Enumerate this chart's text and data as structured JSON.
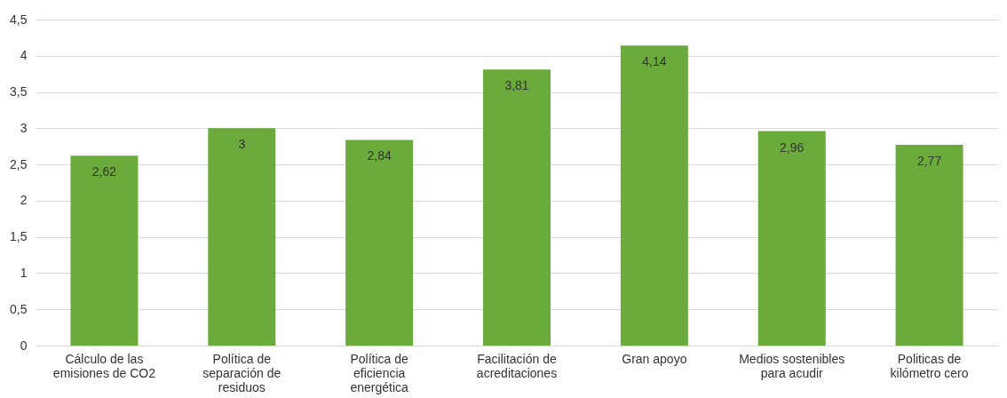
{
  "chart_data": {
    "type": "bar",
    "categories": [
      "Cálculo de las emisiones de CO2",
      "Política de separación de residuos",
      "Política de eficiencia energética",
      "Facilitación de acreditaciones",
      "Gran apoyo",
      "Medios sostenibles para acudir",
      "Politicas de kilómetro cero"
    ],
    "values": [
      2.62,
      3,
      2.84,
      3.81,
      4.14,
      2.96,
      2.77
    ],
    "value_labels": [
      "2,62",
      "3",
      "2,84",
      "3,81",
      "4,14",
      "2,96",
      "2,77"
    ],
    "color": "#6aab3c",
    "ylim": [
      0,
      4.5
    ],
    "yticks": [
      0,
      {
        "value": 0.5,
        "label": "0,5"
      },
      1,
      {
        "value": 1.5,
        "label": "1,5"
      },
      2,
      {
        "value": 2.5,
        "label": "2,5"
      },
      3,
      {
        "value": 3.5,
        "label": "3,5"
      },
      4,
      {
        "value": 4.5,
        "label": "4,5"
      }
    ],
    "grid": "y"
  }
}
